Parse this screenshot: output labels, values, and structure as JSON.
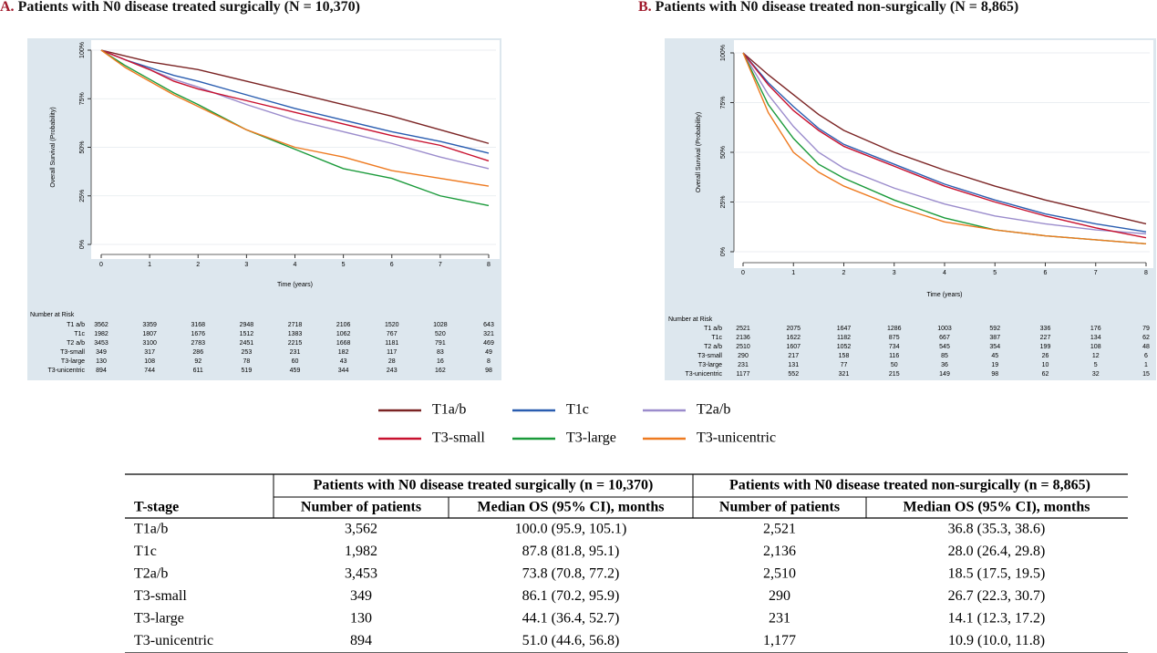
{
  "chart_data": [
    {
      "type": "line",
      "panel": "A.",
      "title": "Patients with N0 disease treated surgically (N = 10,370)",
      "x_label": "Time (years)",
      "y_label": "Overall Survival (Probability)",
      "x": [
        0,
        0.5,
        1,
        1.5,
        2,
        3,
        4,
        5,
        6,
        7,
        8
      ],
      "xlim": [
        0,
        8
      ],
      "xticks": [
        0,
        1,
        2,
        3,
        4,
        5,
        6,
        7,
        8
      ],
      "ylim": [
        0,
        100
      ],
      "yticks": [
        {
          "value": 0,
          "label": "0%"
        },
        {
          "value": 25,
          "label": "25%"
        },
        {
          "value": 50,
          "label": "50%"
        },
        {
          "value": 75,
          "label": "75%"
        },
        {
          "value": 100,
          "label": "100%"
        }
      ],
      "grid": true,
      "series": [
        {
          "color": "#7b2424",
          "values": [
            100,
            97,
            94,
            92,
            90,
            84,
            78,
            72,
            66,
            59,
            52
          ]
        },
        {
          "color": "#2a5db0",
          "values": [
            100,
            95,
            91,
            87,
            84,
            77,
            70,
            64,
            58,
            53,
            47
          ]
        },
        {
          "color": "#9b8ccc",
          "values": [
            100,
            95,
            90,
            85,
            81,
            72,
            64,
            58,
            52,
            45,
            39
          ]
        },
        {
          "color": "#c8102e",
          "values": [
            100,
            95,
            90,
            84,
            80,
            74,
            68,
            62,
            56,
            51,
            43
          ]
        },
        {
          "color": "#1a9a3a",
          "values": [
            100,
            92,
            85,
            78,
            72,
            59,
            49,
            39,
            34,
            25,
            20
          ]
        },
        {
          "color": "#ee7a20",
          "values": [
            100,
            91,
            84,
            77,
            71,
            59,
            50,
            45,
            38,
            34,
            30
          ]
        }
      ],
      "risk_table": {
        "label": "Number at Risk",
        "rows": [
          {
            "name": "T1 a/b",
            "values": [
              3562,
              3359,
              3168,
              2948,
              2718,
              2106,
              1520,
              1028,
              643
            ]
          },
          {
            "name": "T1c",
            "values": [
              1982,
              1807,
              1676,
              1512,
              1383,
              1062,
              767,
              520,
              321
            ]
          },
          {
            "name": "T2 a/b",
            "values": [
              3453,
              3100,
              2783,
              2451,
              2215,
              1668,
              1181,
              791,
              469
            ]
          },
          {
            "name": "T3-small",
            "values": [
              349,
              317,
              286,
              253,
              231,
              182,
              117,
              83,
              49
            ]
          },
          {
            "name": "T3-large",
            "values": [
              130,
              108,
              92,
              78,
              60,
              43,
              28,
              16,
              8
            ]
          },
          {
            "name": "T3-unicentric",
            "values": [
              894,
              744,
              611,
              519,
              459,
              344,
              243,
              162,
              98
            ]
          }
        ]
      }
    },
    {
      "type": "line",
      "panel": "B.",
      "title": "Patients with N0 disease treated non-surgically (N = 8,865)",
      "x_label": "Time (years)",
      "y_label": "Overall Survival (Probability)",
      "x": [
        0,
        0.5,
        1,
        1.5,
        2,
        3,
        4,
        5,
        6,
        7,
        8
      ],
      "xlim": [
        0,
        8
      ],
      "xticks": [
        0,
        1,
        2,
        3,
        4,
        5,
        6,
        7,
        8
      ],
      "ylim": [
        0,
        100
      ],
      "yticks": [
        {
          "value": 0,
          "label": "0%"
        },
        {
          "value": 25,
          "label": "25%"
        },
        {
          "value": 50,
          "label": "50%"
        },
        {
          "value": 75,
          "label": "75%"
        },
        {
          "value": 100,
          "label": "100%"
        }
      ],
      "grid": true,
      "series": [
        {
          "color": "#7b2424",
          "values": [
            100,
            89,
            79,
            69,
            61,
            50,
            41,
            33,
            26,
            20,
            14
          ]
        },
        {
          "color": "#2a5db0",
          "values": [
            100,
            85,
            73,
            62,
            54,
            44,
            34,
            26,
            19,
            14,
            10
          ]
        },
        {
          "color": "#9b8ccc",
          "values": [
            100,
            79,
            63,
            50,
            42,
            32,
            24,
            18,
            14,
            11,
            9
          ]
        },
        {
          "color": "#c8102e",
          "values": [
            100,
            84,
            71,
            61,
            53,
            43,
            33,
            25,
            18,
            12,
            7
          ]
        },
        {
          "color": "#1a9a3a",
          "values": [
            100,
            74,
            57,
            44,
            37,
            26,
            17,
            11,
            8,
            6,
            4
          ]
        },
        {
          "color": "#ee7a20",
          "values": [
            100,
            70,
            50,
            40,
            33,
            23,
            15,
            11,
            8,
            6,
            4
          ]
        }
      ],
      "risk_table": {
        "label": "Number at Risk",
        "rows": [
          {
            "name": "T1 a/b",
            "values": [
              2521,
              2075,
              1647,
              1286,
              1003,
              592,
              336,
              176,
              79
            ]
          },
          {
            "name": "T1c",
            "values": [
              2136,
              1622,
              1182,
              875,
              667,
              387,
              227,
              134,
              62
            ]
          },
          {
            "name": "T2 a/b",
            "values": [
              2510,
              1607,
              1052,
              734,
              545,
              354,
              199,
              108,
              48
            ]
          },
          {
            "name": "T3-small",
            "values": [
              290,
              217,
              158,
              116,
              85,
              45,
              26,
              12,
              6
            ]
          },
          {
            "name": "T3-large",
            "values": [
              231,
              131,
              77,
              50,
              36,
              19,
              10,
              5,
              1
            ]
          },
          {
            "name": "T3-unicentric",
            "values": [
              1177,
              552,
              321,
              215,
              149,
              98,
              62,
              32,
              15
            ]
          }
        ]
      }
    }
  ],
  "legend": [
    {
      "name": "T1a/b",
      "color": "#7b2424"
    },
    {
      "name": "T1c",
      "color": "#2a5db0"
    },
    {
      "name": "T2a/b",
      "color": "#9b8ccc"
    },
    {
      "name": "T3-small",
      "color": "#c8102e"
    },
    {
      "name": "T3-large",
      "color": "#1a9a3a"
    },
    {
      "name": "T3-unicentric",
      "color": "#ee7a20"
    }
  ],
  "table": {
    "group_headers": [
      "Patients with N0 disease treated surgically (n = 10,370)",
      "Patients with N0 disease treated non-surgically (n = 8,865)"
    ],
    "columns": [
      "T-stage",
      "Number of patients",
      "Median OS (95% CI), months",
      "Number of patients",
      "Median OS (95% CI), months"
    ],
    "rows": [
      [
        "T1a/b",
        "3,562",
        "100.0 (95.9, 105.1)",
        "2,521",
        "36.8 (35.3, 38.6)"
      ],
      [
        "T1c",
        "1,982",
        "87.8 (81.8, 95.1)",
        "2,136",
        "28.0 (26.4, 29.8)"
      ],
      [
        "T2a/b",
        "3,453",
        "73.8 (70.8, 77.2)",
        "2,510",
        "18.5 (17.5, 19.5)"
      ],
      [
        "T3-small",
        "349",
        "86.1 (70.2, 95.9)",
        "290",
        "26.7 (22.3, 30.7)"
      ],
      [
        "T3-large",
        "130",
        "44.1 (36.4, 52.7)",
        "231",
        "14.1 (12.3, 17.2)"
      ],
      [
        "T3-unicentric",
        "894",
        "51.0 (44.6, 56.8)",
        "1,177",
        "10.9 (10.0, 11.8)"
      ]
    ]
  }
}
